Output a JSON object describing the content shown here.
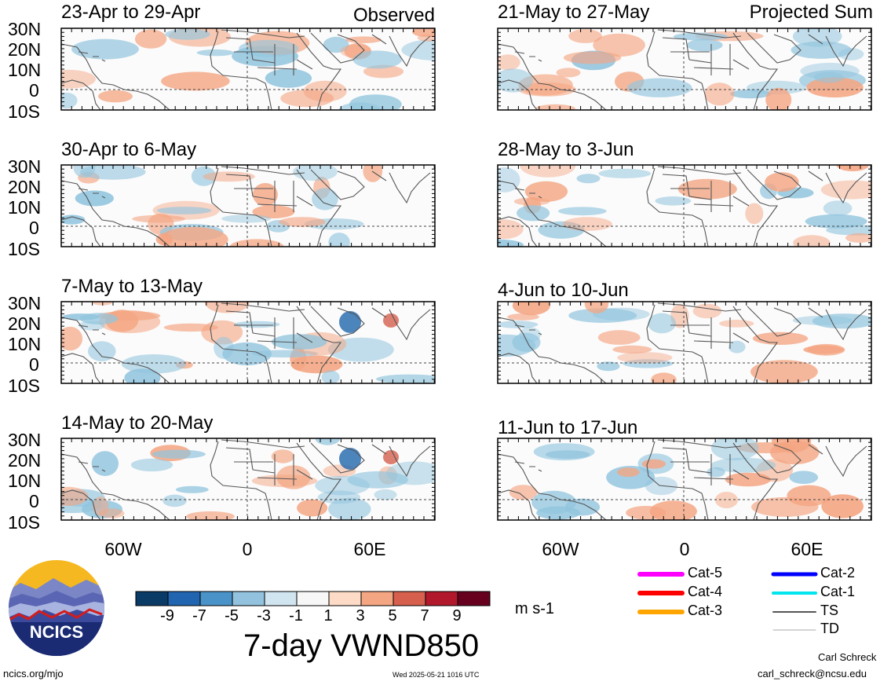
{
  "left_header": "Observed",
  "right_header": "Projected Sum",
  "panels": [
    {
      "col": 0,
      "row": 0,
      "title": "23-Apr to 29-Apr"
    },
    {
      "col": 0,
      "row": 1,
      "title": "30-Apr to 6-May"
    },
    {
      "col": 0,
      "row": 2,
      "title": "7-May to 13-May"
    },
    {
      "col": 0,
      "row": 3,
      "title": "14-May to 20-May"
    },
    {
      "col": 1,
      "row": 0,
      "title": "21-May to 27-May"
    },
    {
      "col": 1,
      "row": 1,
      "title": "28-May to 3-Jun"
    },
    {
      "col": 1,
      "row": 2,
      "title": "4-Jun to 10-Jun"
    },
    {
      "col": 1,
      "row": 3,
      "title": "11-Jun to 17-Jun"
    }
  ],
  "lat_labels": [
    "30N",
    "20N",
    "10N",
    "0",
    "10S"
  ],
  "lon_labels": [
    "60W",
    "0",
    "60E"
  ],
  "colorbar": {
    "colors": [
      "#0a3a66",
      "#2164b0",
      "#4a93c8",
      "#92c2de",
      "#d1e5f0",
      "#f7f7f7",
      "#fddbc7",
      "#f4a582",
      "#d6604d",
      "#b2182b",
      "#67001f"
    ],
    "labels": [
      "-9",
      "-7",
      "-5",
      "-3",
      "-1",
      "1",
      "3",
      "5",
      "7",
      "9"
    ],
    "units": "m s-1"
  },
  "main_title": "7-day VWND850",
  "legend": [
    {
      "label": "Cat-5",
      "color": "#ff00ff",
      "width": 6
    },
    {
      "label": "Cat-4",
      "color": "#ff0000",
      "width": 6
    },
    {
      "label": "Cat-3",
      "color": "#ffa500",
      "width": 6
    },
    {
      "label": "Cat-2",
      "color": "#0000ff",
      "width": 5
    },
    {
      "label": "Cat-1",
      "color": "#00e5ee",
      "width": 4
    },
    {
      "label": "TS",
      "color": "#555555",
      "width": 2
    },
    {
      "label": "TD",
      "color": "#aaaaaa",
      "width": 1
    }
  ],
  "logo_text": "NCICS",
  "footer_left": "ncics.org/mjo",
  "footer_center": "Wed 2025-05-21 1016 UTC",
  "author": "Carl Schreck",
  "email": "carl_schreck@ncsu.edu",
  "colors": {
    "blue": "#92c5de",
    "red": "#f4a582",
    "land": "#555555"
  }
}
